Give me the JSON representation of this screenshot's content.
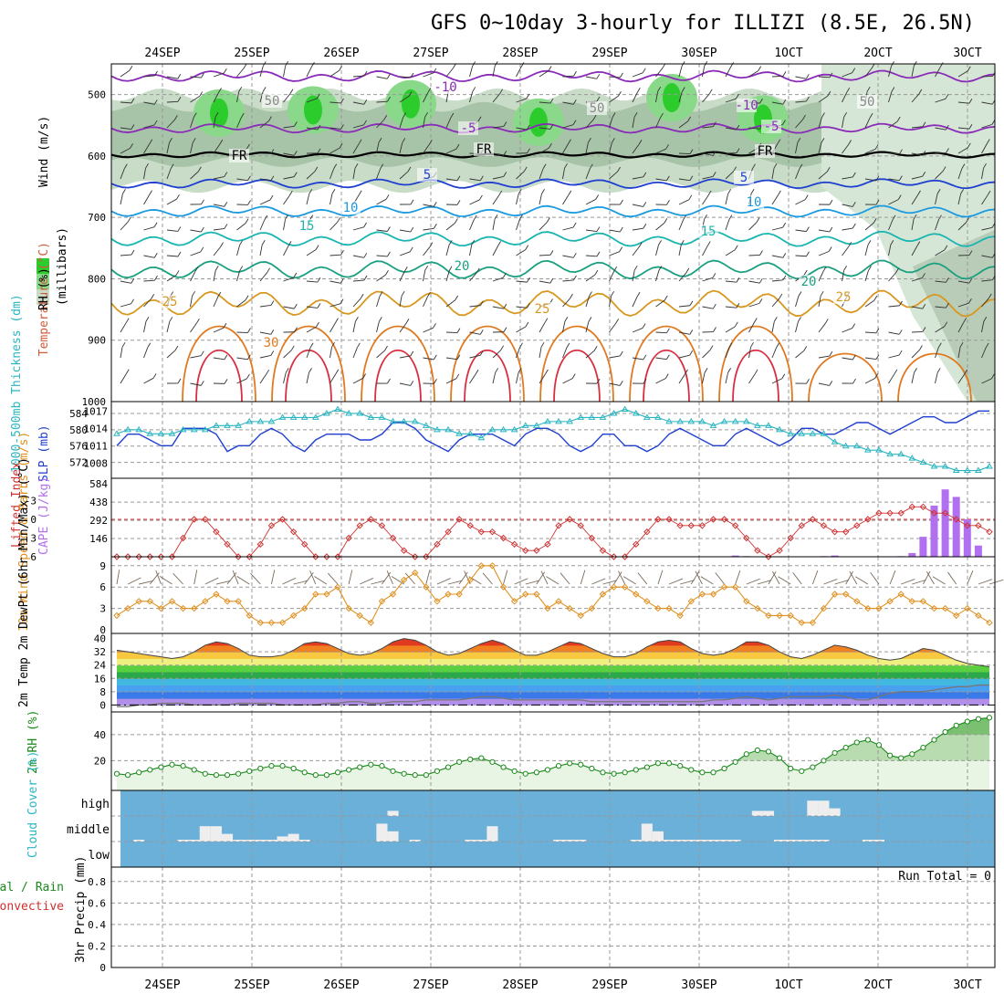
{
  "title": "GFS 0~10day 3-hourly for ILLIZI (8.5E, 26.5N)",
  "dates": [
    "24SEP",
    "25SEP",
    "26SEP",
    "27SEP",
    "28SEP",
    "29SEP",
    "30SEP",
    "1OCT",
    "2OCT",
    "3OCT"
  ],
  "dates_printed": [
    "24SEP",
    "25SEP",
    "26SEP",
    "27SEP",
    "28SEP",
    "29SEP",
    "30SEP",
    "1OCT",
    "2OCT",
    "3OCT"
  ],
  "panels": {
    "upper": {
      "ylabel_wind": "Wind (m/s)",
      "ylabel_temp": "Temperature (°C)",
      "ylabel_rh": "RH (%)",
      "ylabel_mb": "(millibars)",
      "ticks": [
        "500",
        "600",
        "700",
        "800",
        "900",
        "1000"
      ],
      "contour_labels": [
        "-10",
        "-5",
        "FR",
        "5",
        "10",
        "15",
        "20",
        "25",
        "30",
        "50"
      ]
    },
    "thickness": {
      "ylabel_left": "1000-500mb Thickness (dm)",
      "ylabel_right": "SLP (mb)",
      "left_ticks": [
        "584",
        "580",
        "576",
        "572"
      ],
      "right_ticks": [
        "1017",
        "1014",
        "1011",
        "1008"
      ]
    },
    "li": {
      "ylabel_left": "Lifted Index",
      "ylabel_right": "CAPE (J/kg)",
      "left_ticks": [
        "-3",
        "0",
        "3",
        "6"
      ],
      "right_ticks": [
        "584",
        "438",
        "292",
        "146"
      ]
    },
    "wind10": {
      "ylabel": "10m Wind Speed & Barbs (m/s)",
      "ticks": [
        "9",
        "6",
        "3",
        "0"
      ]
    },
    "temp2m": {
      "ylabel": "2m Temp 2m DewPt (6hr Min/Max) (°C)",
      "ticks": [
        "40",
        "32",
        "24",
        "16",
        "8",
        "0"
      ]
    },
    "rh2m": {
      "ylabel": "2m RH (%)",
      "ticks": [
        "40",
        "20"
      ]
    },
    "cloud": {
      "ylabel": "Cloud Cover (%)",
      "ticks": [
        "high",
        "middle",
        "low"
      ]
    },
    "precip": {
      "ylabel_total": "Total / Rain",
      "ylabel_conv": "Convective",
      "ylabel_axis": "3hr Precip (mm)",
      "ticks": [
        "0.8",
        "0.6",
        "0.4",
        "0.2",
        "0"
      ],
      "run_total": "Run Total = 0"
    }
  },
  "colors": {
    "slp": "#1f3fd0",
    "thickness": "#2ab5c0",
    "li": "#d03030",
    "cape": "#b070f0",
    "wind": "#e09020",
    "rh": "#1a8a1a",
    "cloud_bg": "#6ab0d8",
    "cloud_fg": "#eeeeee"
  },
  "chart_data": [
    {
      "type": "line",
      "panel": "thickness",
      "series": [
        {
          "name": "1000-500mb Thickness (dm)",
          "values": [
            579,
            580,
            580,
            579,
            579,
            579,
            580,
            580,
            580,
            581,
            581,
            581,
            582,
            582,
            582,
            583,
            583,
            583,
            583,
            584,
            585,
            584,
            584,
            583,
            583,
            582,
            582,
            582,
            581,
            580,
            580,
            579,
            579,
            578,
            580,
            580,
            580,
            581,
            581,
            582,
            582,
            582,
            583,
            583,
            583,
            584,
            585,
            584,
            583,
            583,
            582,
            582,
            582,
            582,
            581,
            582,
            582,
            582,
            581,
            581,
            580,
            579,
            579,
            579,
            579,
            577,
            576,
            576,
            575,
            575,
            574,
            574,
            573,
            572,
            571,
            571,
            570,
            570,
            570,
            571
          ]
        },
        {
          "name": "SLP (mb)",
          "values": [
            1011,
            1013,
            1013,
            1012,
            1011,
            1011,
            1014,
            1014,
            1014,
            1013,
            1010,
            1011,
            1011,
            1013,
            1014,
            1013,
            1011,
            1010,
            1012,
            1013,
            1013,
            1013,
            1012,
            1012,
            1013,
            1015,
            1015,
            1014,
            1012,
            1011,
            1010,
            1012,
            1013,
            1013,
            1013,
            1012,
            1011,
            1013,
            1014,
            1014,
            1013,
            1011,
            1010,
            1011,
            1013,
            1013,
            1011,
            1011,
            1010,
            1011,
            1013,
            1014,
            1013,
            1012,
            1011,
            1011,
            1013,
            1014,
            1013,
            1012,
            1011,
            1012,
            1014,
            1014,
            1013,
            1013,
            1014,
            1015,
            1015,
            1014,
            1013,
            1014,
            1015,
            1016,
            1016,
            1015,
            1015,
            1016,
            1017,
            1017
          ]
        }
      ]
    },
    {
      "type": "line",
      "panel": "li",
      "series": [
        {
          "name": "Lifted Index",
          "values": [
            6,
            6,
            6,
            6,
            6,
            6,
            3,
            0,
            0,
            2,
            4,
            6,
            6,
            4,
            1,
            0,
            2,
            4,
            6,
            6,
            6,
            3,
            1,
            0,
            1,
            3,
            5,
            6,
            6,
            4,
            2,
            0,
            1,
            2,
            2,
            3,
            4,
            5,
            5,
            4,
            1,
            0,
            1,
            3,
            5,
            6,
            6,
            4,
            2,
            0,
            0,
            1,
            1,
            1,
            0,
            0,
            1,
            3,
            5,
            6,
            5,
            3,
            1,
            0,
            1,
            2,
            2,
            1,
            0,
            -1,
            -1,
            -1,
            -2,
            -2,
            -1,
            -1,
            0,
            1,
            1,
            2
          ]
        },
        {
          "name": "CAPE (J/kg)",
          "values": [
            0,
            0,
            0,
            0,
            0,
            0,
            0,
            0,
            0,
            0,
            0,
            0,
            0,
            0,
            0,
            0,
            0,
            0,
            0,
            0,
            0,
            0,
            0,
            0,
            0,
            0,
            0,
            0,
            0,
            0,
            0,
            0,
            0,
            0,
            0,
            0,
            0,
            0,
            0,
            0,
            0,
            0,
            0,
            0,
            0,
            0,
            0,
            0,
            0,
            0,
            0,
            0,
            0,
            0,
            0,
            0,
            10,
            5,
            0,
            0,
            0,
            0,
            0,
            0,
            5,
            10,
            0,
            0,
            0,
            0,
            0,
            5,
            30,
            160,
            410,
            540,
            480,
            300,
            90,
            0
          ]
        }
      ]
    },
    {
      "type": "line",
      "panel": "wind10",
      "series": [
        {
          "name": "10m Wind Speed (m/s)",
          "values": [
            2,
            3,
            4,
            4,
            3,
            4,
            3,
            3,
            4,
            5,
            4,
            4,
            2,
            1,
            1,
            1,
            2,
            3,
            5,
            5,
            6,
            3,
            2,
            1,
            4,
            5,
            7,
            8,
            6,
            4,
            5,
            5,
            7,
            9,
            9,
            6,
            4,
            5,
            5,
            3,
            4,
            3,
            2,
            3,
            5,
            6,
            6,
            5,
            4,
            3,
            3,
            2,
            4,
            5,
            5,
            6,
            6,
            4,
            3,
            2,
            2,
            2,
            1,
            1,
            3,
            5,
            5,
            4,
            3,
            3,
            4,
            5,
            4,
            4,
            3,
            3,
            2,
            3,
            2,
            1
          ]
        }
      ]
    },
    {
      "type": "area",
      "panel": "temp2m",
      "series": [
        {
          "name": "2m Temp (°C)",
          "values": [
            33,
            32,
            31,
            30,
            29,
            28,
            29,
            32,
            36,
            38,
            37,
            34,
            30,
            29,
            29,
            30,
            33,
            37,
            38,
            37,
            34,
            31,
            30,
            31,
            34,
            38,
            40,
            39,
            36,
            32,
            30,
            31,
            34,
            37,
            39,
            37,
            33,
            30,
            30,
            32,
            35,
            38,
            37,
            34,
            31,
            29,
            29,
            31,
            35,
            38,
            39,
            38,
            34,
            31,
            30,
            31,
            34,
            38,
            38,
            36,
            32,
            29,
            28,
            30,
            33,
            36,
            35,
            33,
            30,
            28,
            27,
            28,
            31,
            34,
            33,
            30,
            27,
            25,
            24,
            23
          ]
        },
        {
          "name": "2m DewPt (°C)",
          "values": [
            -1,
            -1,
            0,
            0,
            1,
            1,
            1,
            0,
            0,
            0,
            0,
            1,
            1,
            1,
            1,
            0,
            0,
            0,
            0,
            1,
            1,
            2,
            2,
            1,
            1,
            2,
            2,
            2,
            3,
            3,
            3,
            3,
            4,
            5,
            5,
            4,
            3,
            3,
            3,
            3,
            3,
            3,
            3,
            2,
            2,
            2,
            2,
            2,
            2,
            2,
            2,
            2,
            2,
            2,
            3,
            3,
            4,
            5,
            4,
            3,
            4,
            5,
            5,
            5,
            5,
            6,
            5,
            3,
            3,
            5,
            7,
            8,
            8,
            8,
            9,
            10,
            11,
            11,
            12,
            12
          ]
        }
      ]
    },
    {
      "type": "area",
      "panel": "rh2m",
      "series": [
        {
          "name": "2m RH (%)",
          "values": [
            10,
            9,
            11,
            13,
            15,
            17,
            16,
            13,
            10,
            9,
            9,
            10,
            12,
            14,
            16,
            16,
            14,
            11,
            9,
            9,
            11,
            13,
            15,
            17,
            16,
            12,
            10,
            9,
            9,
            12,
            15,
            19,
            21,
            22,
            19,
            15,
            12,
            10,
            11,
            13,
            16,
            18,
            17,
            14,
            11,
            10,
            11,
            13,
            15,
            18,
            18,
            16,
            13,
            11,
            11,
            14,
            19,
            25,
            28,
            27,
            22,
            14,
            12,
            15,
            20,
            26,
            30,
            34,
            36,
            32,
            24,
            22,
            25,
            30,
            36,
            42,
            47,
            50,
            52,
            53
          ]
        }
      ]
    },
    {
      "type": "bar",
      "panel": "cloud",
      "series": [
        {
          "name": "low",
          "values": [
            0,
            0,
            0,
            0,
            0,
            0,
            0,
            0,
            0,
            0,
            0,
            0,
            0,
            0,
            0,
            0,
            0,
            0,
            0,
            0,
            0,
            0,
            0,
            0,
            0,
            0,
            0,
            0,
            0,
            0,
            0,
            0,
            0,
            0,
            0,
            0,
            0,
            0,
            0,
            0,
            0,
            0,
            0,
            0,
            0,
            0,
            0,
            0,
            0,
            0,
            0,
            0,
            0,
            0,
            0,
            0,
            0,
            0,
            0,
            0,
            0,
            0,
            0,
            0,
            0,
            0,
            0,
            0,
            0,
            0,
            0,
            0,
            0,
            0,
            0,
            0,
            0,
            0,
            0,
            0
          ]
        },
        {
          "name": "middle",
          "values": [
            0,
            0,
            5,
            0,
            0,
            0,
            5,
            5,
            60,
            60,
            30,
            5,
            5,
            5,
            5,
            20,
            30,
            5,
            0,
            0,
            0,
            0,
            0,
            0,
            70,
            40,
            0,
            5,
            0,
            0,
            0,
            0,
            5,
            5,
            60,
            0,
            0,
            0,
            0,
            0,
            5,
            5,
            5,
            0,
            0,
            0,
            0,
            5,
            70,
            40,
            5,
            5,
            5,
            5,
            5,
            5,
            5,
            0,
            0,
            0,
            5,
            5,
            5,
            5,
            5,
            0,
            0,
            0,
            5,
            5,
            0,
            0,
            0,
            0,
            0,
            0,
            0,
            0,
            0,
            0
          ]
        },
        {
          "name": "high",
          "values": [
            0,
            0,
            0,
            0,
            0,
            0,
            0,
            0,
            0,
            0,
            0,
            0,
            0,
            0,
            0,
            0,
            0,
            0,
            0,
            0,
            0,
            0,
            0,
            0,
            0,
            20,
            0,
            0,
            0,
            0,
            0,
            0,
            0,
            0,
            0,
            0,
            0,
            0,
            0,
            0,
            0,
            0,
            0,
            0,
            0,
            0,
            0,
            0,
            0,
            0,
            0,
            0,
            0,
            0,
            0,
            0,
            0,
            0,
            20,
            20,
            0,
            0,
            0,
            60,
            60,
            30,
            0,
            0,
            0,
            0,
            0,
            0,
            0,
            0,
            0,
            0,
            0,
            0,
            0,
            0
          ]
        }
      ]
    },
    {
      "type": "bar",
      "panel": "precip",
      "ylim": [
        0,
        0.9
      ],
      "series": [
        {
          "name": "Total / Rain",
          "values": []
        },
        {
          "name": "Convective",
          "values": []
        }
      ]
    }
  ]
}
